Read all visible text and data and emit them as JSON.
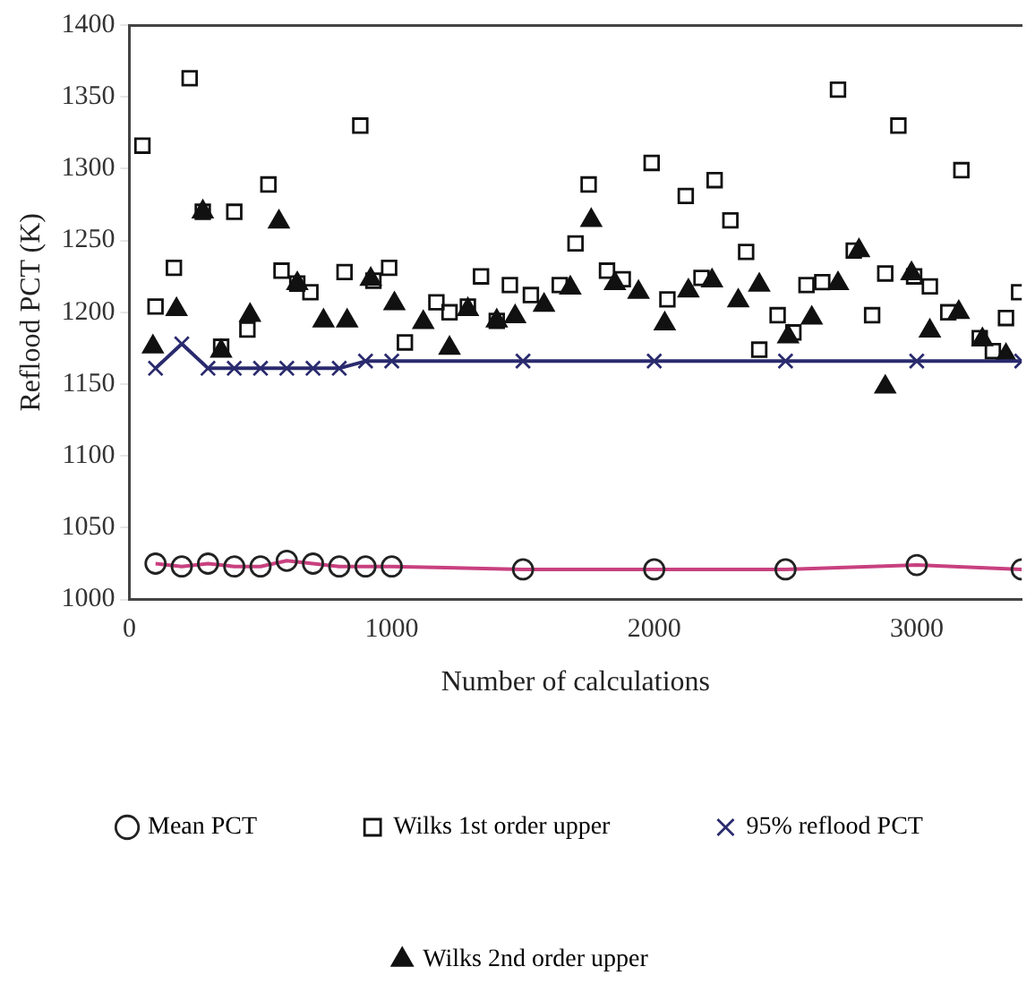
{
  "chart_data": {
    "type": "scatter",
    "xlabel": "Number of calculations",
    "ylabel": "Reflood PCT (K)",
    "xlim": [
      0,
      3400
    ],
    "xticks": [
      0,
      1000,
      2000,
      3000
    ],
    "ylim": [
      1000,
      1400
    ],
    "yticks": [
      1000,
      1050,
      1100,
      1150,
      1200,
      1250,
      1300,
      1350,
      1400
    ],
    "grid": false,
    "legend": "bottom",
    "series": [
      {
        "name": "Mean PCT",
        "type": "line",
        "marker": "circle",
        "color": "#c8407f",
        "x": [
          100,
          200,
          300,
          400,
          500,
          600,
          700,
          800,
          900,
          1000,
          1500,
          2000,
          2500,
          3000,
          3400
        ],
        "values": [
          1025,
          1023,
          1025,
          1023,
          1023,
          1027,
          1025,
          1023,
          1023,
          1023,
          1021,
          1021,
          1021,
          1024,
          1021
        ]
      },
      {
        "name": "Wilks 1st order upper",
        "marker": "square",
        "color": "#111111",
        "x": [
          50,
          100,
          170,
          230,
          280,
          350,
          400,
          450,
          530,
          580,
          640,
          690,
          820,
          880,
          930,
          990,
          1050,
          1170,
          1220,
          1290,
          1340,
          1400,
          1450,
          1530,
          1640,
          1700,
          1750,
          1820,
          1880,
          1990,
          2050,
          2120,
          2180,
          2230,
          2290,
          2350,
          2400,
          2470,
          2530,
          2580,
          2640,
          2700,
          2760,
          2830,
          2880,
          2930,
          2990,
          3050,
          3120,
          3170,
          3240,
          3290,
          3340,
          3390
        ],
        "values": [
          1316,
          1204,
          1231,
          1363,
          1270,
          1176,
          1270,
          1188,
          1289,
          1229,
          1220,
          1214,
          1228,
          1330,
          1222,
          1231,
          1179,
          1207,
          1200,
          1204,
          1225,
          1194,
          1219,
          1212,
          1219,
          1248,
          1289,
          1229,
          1223,
          1304,
          1209,
          1281,
          1224,
          1292,
          1264,
          1242,
          1174,
          1198,
          1186,
          1219,
          1221,
          1355,
          1243,
          1198,
          1227,
          1330,
          1225,
          1218,
          1200,
          1299,
          1182,
          1173,
          1196,
          1214
        ]
      },
      {
        "name": "95% reflood PCT",
        "type": "line",
        "marker": "cross",
        "color": "#2a2a6e",
        "x": [
          100,
          200,
          300,
          400,
          500,
          600,
          700,
          800,
          900,
          1000,
          1500,
          2000,
          2500,
          3000,
          3400
        ],
        "values": [
          1161,
          1178,
          1161,
          1161,
          1161,
          1161,
          1161,
          1161,
          1166,
          1166,
          1166,
          1166,
          1166,
          1166,
          1166
        ]
      },
      {
        "name": "Wilks 2nd order upper",
        "marker": "triangle",
        "color": "#111111",
        "x": [
          90,
          180,
          280,
          350,
          460,
          570,
          640,
          740,
          830,
          920,
          1010,
          1120,
          1220,
          1290,
          1400,
          1470,
          1580,
          1680,
          1760,
          1850,
          1940,
          2040,
          2130,
          2220,
          2320,
          2400,
          2510,
          2600,
          2700,
          2780,
          2880,
          2980,
          3050,
          3160,
          3250,
          3340
        ],
        "values": [
          1176,
          1202,
          1270,
          1173,
          1198,
          1263,
          1220,
          1194,
          1194,
          1223,
          1206,
          1193,
          1175,
          1202,
          1194,
          1197,
          1205,
          1217,
          1264,
          1220,
          1214,
          1192,
          1215,
          1222,
          1208,
          1219,
          1183,
          1196,
          1220,
          1243,
          1148,
          1227,
          1187,
          1200,
          1181,
          1170
        ]
      }
    ]
  }
}
